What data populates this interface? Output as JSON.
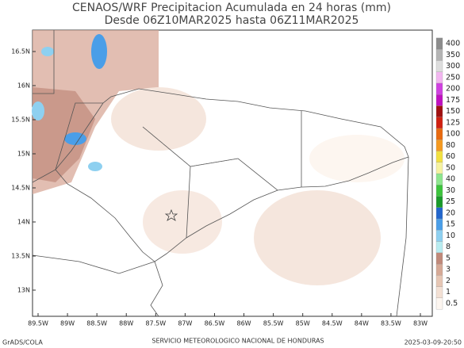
{
  "header": {
    "title": "CENAOS/WRF Precipitacion Acumulada en 24 horas (mm)",
    "subtitle": "Desde 06Z10MAR2025 hasta 06Z11MAR2025"
  },
  "map": {
    "lat_labels": [
      "16.5N",
      "16N",
      "15.5N",
      "15N",
      "14.5N",
      "14N",
      "13.5N",
      "13N"
    ],
    "lon_labels": [
      "89.5W",
      "89W",
      "88.5W",
      "88W",
      "87.5W",
      "87W",
      "86.5W",
      "86W",
      "85.5W",
      "85W",
      "84.5W",
      "84W",
      "83.5W",
      "83W"
    ]
  },
  "colorbar": {
    "levels": [
      0.5,
      1,
      2,
      3,
      5,
      8,
      10,
      15,
      20,
      25,
      30,
      40,
      50,
      60,
      80,
      100,
      125,
      150,
      175,
      200,
      250,
      300,
      350,
      400
    ],
    "colors": [
      "#fdf6f0",
      "#f3e0d4",
      "#e6c6b4",
      "#d6a996",
      "#c0897a",
      "#b8ecf0",
      "#8ed0f0",
      "#4a9ee8",
      "#2266cc",
      "#1a9a2a",
      "#3cc43c",
      "#8ee68e",
      "#f6f2a0",
      "#f2e040",
      "#f59a20",
      "#e86a10",
      "#d02010",
      "#a01010",
      "#c010c0",
      "#d040e0",
      "#f2b6f0",
      "#dddddd",
      "#b4b4b4",
      "#8c8c8c"
    ]
  },
  "footer": {
    "left": "GrADS/COLA",
    "center": "SERVICIO METEOROLOGICO NACIONAL DE HONDURAS",
    "right": "2025-03-09-20:50"
  }
}
